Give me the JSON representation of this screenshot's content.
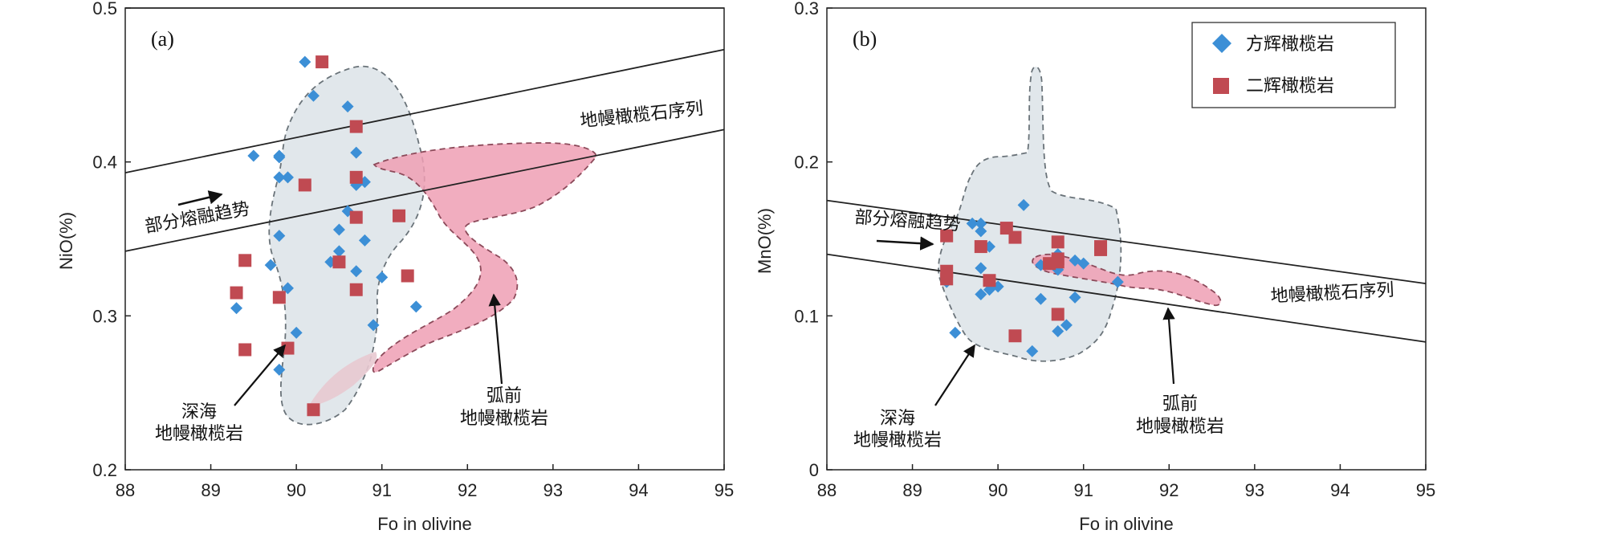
{
  "chart_data": [
    {
      "type": "scatter",
      "panel_label": "(a)",
      "xlabel": "Fo in olivine",
      "ylabel": "NiO(%)",
      "xlim": [
        88,
        95
      ],
      "ylim": [
        0.2,
        0.5
      ],
      "xticks": [
        "88",
        "89",
        "90",
        "91",
        "92",
        "93",
        "94",
        "95"
      ],
      "yticks": [
        "0.2",
        "0.3",
        "0.4",
        "0.5"
      ],
      "series": [
        {
          "name": "方辉橄榄岩",
          "marker": "diamond",
          "color": "#3c8fd6",
          "x": [
            90.1,
            90.2,
            90.6,
            90.7,
            89.8,
            89.9,
            90.8,
            89.8,
            89.5,
            90.7,
            89.8,
            90.5,
            90.6,
            89.8,
            90.4,
            90.8,
            89.7,
            90.5,
            90.7,
            91.0,
            89.9,
            90.9,
            90.0,
            89.3,
            91.4,
            89.8
          ],
          "y": [
            0.465,
            0.443,
            0.436,
            0.406,
            0.404,
            0.39,
            0.387,
            0.403,
            0.404,
            0.385,
            0.39,
            0.356,
            0.368,
            0.352,
            0.335,
            0.349,
            0.333,
            0.342,
            0.329,
            0.325,
            0.318,
            0.294,
            0.289,
            0.305,
            0.306,
            0.265
          ]
        },
        {
          "name": "二辉橄榄岩",
          "marker": "square",
          "color": "#c04a52",
          "x": [
            90.3,
            90.7,
            90.7,
            90.1,
            91.2,
            90.7,
            89.4,
            90.5,
            90.7,
            91.3,
            89.3,
            89.8,
            89.4,
            89.9,
            90.2
          ],
          "y": [
            0.465,
            0.423,
            0.39,
            0.385,
            0.365,
            0.364,
            0.336,
            0.335,
            0.317,
            0.326,
            0.315,
            0.312,
            0.278,
            0.279,
            0.239
          ]
        }
      ],
      "regions": [
        {
          "name": "深海地幔橄榄岩",
          "color": "#c9d3da"
        },
        {
          "name": "弧前地幔橄榄岩",
          "color": "#ee9fb4"
        }
      ],
      "reference_band": {
        "label": "地幔橄榄石序列",
        "upper": [
          [
            88,
            0.393
          ],
          [
            95,
            0.473
          ]
        ],
        "lower": [
          [
            88,
            0.342
          ],
          [
            95,
            0.421
          ]
        ]
      },
      "annotations": [
        {
          "text": "部分熔融趋势",
          "kind": "arrow-label"
        },
        {
          "lines": [
            "深海",
            "地幔橄榄岩"
          ],
          "kind": "arrow-label"
        },
        {
          "lines": [
            "弧前",
            "地幔橄榄岩"
          ],
          "kind": "arrow-label"
        }
      ]
    },
    {
      "type": "scatter",
      "panel_label": "(b)",
      "xlabel": "Fo in olivine",
      "ylabel": "MnO(%)",
      "xlim": [
        88,
        95
      ],
      "ylim": [
        0,
        0.3
      ],
      "xticks": [
        "88",
        "89",
        "90",
        "91",
        "92",
        "93",
        "94",
        "95"
      ],
      "yticks": [
        "0",
        "0.1",
        "0.2",
        "0.3"
      ],
      "series": [
        {
          "name": "方辉橄榄岩",
          "marker": "diamond",
          "color": "#3c8fd6",
          "x": [
            90.3,
            89.7,
            89.8,
            89.8,
            89.9,
            90.7,
            90.9,
            90.5,
            91.0,
            90.7,
            89.8,
            89.9,
            90.0,
            90.5,
            90.9,
            90.8,
            89.8,
            89.4,
            90.7,
            89.5,
            90.4,
            91.4
          ],
          "y": [
            0.172,
            0.16,
            0.16,
            0.155,
            0.145,
            0.14,
            0.136,
            0.133,
            0.134,
            0.13,
            0.131,
            0.117,
            0.119,
            0.111,
            0.112,
            0.094,
            0.114,
            0.122,
            0.09,
            0.089,
            0.077,
            0.122
          ]
        },
        {
          "name": "二辉橄榄岩",
          "marker": "square",
          "color": "#c04a52",
          "x": [
            90.1,
            89.4,
            90.2,
            89.8,
            91.2,
            91.2,
            90.7,
            90.7,
            90.6,
            90.7,
            89.4,
            89.4,
            89.9,
            90.7,
            90.2
          ],
          "y": [
            0.157,
            0.152,
            0.151,
            0.145,
            0.145,
            0.143,
            0.148,
            0.137,
            0.134,
            0.135,
            0.129,
            0.124,
            0.123,
            0.101,
            0.087
          ]
        }
      ],
      "regions": [
        {
          "name": "深海地幔橄榄岩",
          "color": "#c9d3da"
        },
        {
          "name": "弧前地幔橄榄岩",
          "color": "#ee9fb4"
        }
      ],
      "reference_band": {
        "label": "地幔橄榄石序列",
        "upper": [
          [
            88,
            0.175
          ],
          [
            95,
            0.121
          ]
        ],
        "lower": [
          [
            88,
            0.14
          ],
          [
            95,
            0.083
          ]
        ]
      },
      "annotations": [
        {
          "text": "部分熔融趋势",
          "kind": "arrow-label"
        },
        {
          "lines": [
            "深海",
            "地幔橄榄岩"
          ],
          "kind": "arrow-label"
        },
        {
          "lines": [
            "弧前",
            "地幔橄榄岩"
          ],
          "kind": "arrow-label"
        }
      ],
      "legend": {
        "position": "top-right",
        "items": [
          "方辉橄榄岩",
          "二辉橄榄岩"
        ]
      }
    }
  ]
}
